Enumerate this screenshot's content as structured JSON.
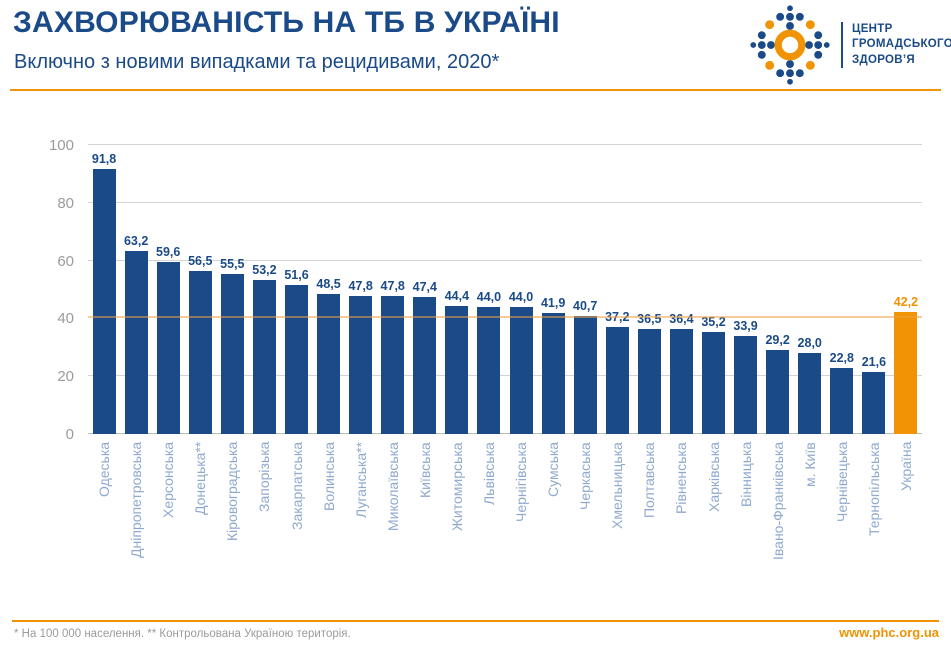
{
  "header": {
    "title": "ЗАХВОРЮВАНІСТЬ НА ТБ В УКРАЇНІ",
    "subtitle": "Включно з новими випадками та рецидивами, 2020*",
    "logo": {
      "org_lines": [
        "ЦЕНТР",
        "ГРОМАДСЬКОГО",
        "ЗДОРОВ’Я"
      ]
    }
  },
  "chart_data": {
    "type": "bar",
    "title": "Захворюваність на ТБ в Україні, включно з новими випадками та рецидивами, 2020",
    "categories": [
      "Одеська",
      "Дніпропетровська",
      "Херсонська",
      "Донецька**",
      "Кіровоградська",
      "Запорізька",
      "Закарпатська",
      "Волинська",
      "Луганська**",
      "Миколаївська",
      "Київська",
      "Житомирська",
      "Львівська",
      "Чернігівська",
      "Сумська",
      "Черкаська",
      "Хмельницька",
      "Полтавська",
      "Рівненська",
      "Харківська",
      "Вінницька",
      "Івано-Франківська",
      "м. Київ",
      "Чернівецька",
      "Тернопільська",
      "Україна"
    ],
    "values": [
      91.8,
      63.2,
      59.6,
      56.5,
      55.5,
      53.2,
      51.6,
      48.5,
      47.8,
      47.8,
      47.4,
      44.4,
      44.0,
      44.0,
      41.9,
      40.7,
      37.2,
      36.5,
      36.4,
      35.2,
      33.9,
      29.2,
      28.0,
      22.8,
      21.6,
      42.2
    ],
    "highlight_index": 25,
    "xlabel": "",
    "ylabel": "",
    "ylim": [
      0,
      100
    ],
    "yticks": [
      0,
      20,
      40,
      60,
      80,
      100
    ],
    "grid": "horizontal",
    "legend": "none",
    "reference_line_value": 40,
    "decimal_separator": ",",
    "bar_color": "#1b4a88",
    "highlight_color": "#f09305",
    "category_label_color": "#8fa9ce"
  },
  "footer": {
    "note": "* На 100 000 населення. ** Контрольована Україною територія.",
    "website": "www.phc.org.ua"
  },
  "colors": {
    "brand_blue": "#1b4a88",
    "accent_orange": "#f09305",
    "light_blue_labels": "#8fa9ce",
    "gray_text": "#9b9b9b",
    "gridline_gray": "#d4d4d4",
    "reference_line_orange": "#f0a143"
  }
}
